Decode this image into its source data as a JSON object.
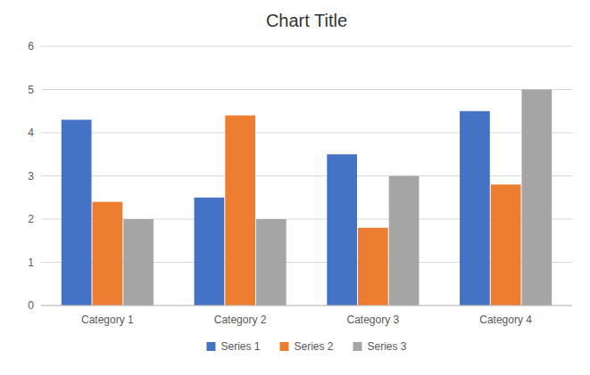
{
  "chart_data": {
    "type": "bar",
    "title": "Chart Title",
    "categories": [
      "Category 1",
      "Category 2",
      "Category 3",
      "Category 4"
    ],
    "series": [
      {
        "name": "Series 1",
        "color": "#4472C4",
        "values": [
          4.3,
          2.5,
          3.5,
          4.5
        ]
      },
      {
        "name": "Series 2",
        "color": "#ED7D31",
        "values": [
          2.4,
          4.4,
          1.8,
          2.8
        ]
      },
      {
        "name": "Series 3",
        "color": "#A5A5A5",
        "values": [
          2,
          2,
          3,
          5
        ]
      }
    ],
    "ylim": [
      0,
      6
    ],
    "yticks": [
      0,
      1,
      2,
      3,
      4,
      5,
      6
    ],
    "grid": true,
    "legend": "bottom"
  }
}
